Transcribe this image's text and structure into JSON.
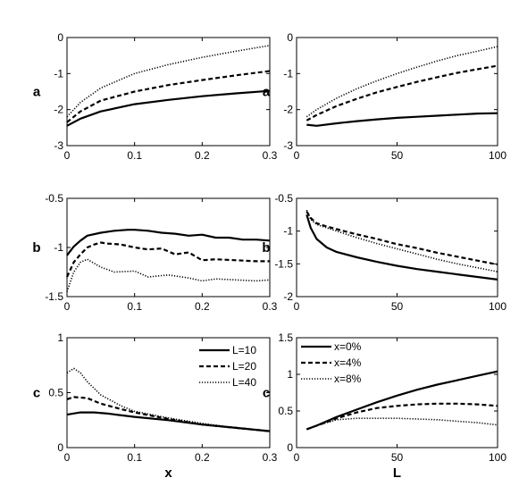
{
  "chart_data": [
    {
      "type": "line",
      "xlabel": "",
      "ylabel": "a",
      "xlim": [
        0,
        0.3
      ],
      "ylim": [
        -3,
        0
      ],
      "xticks": [
        "0",
        "0.1",
        "0.2",
        "0.3"
      ],
      "yticks": [
        "-3",
        "-2",
        "-1",
        "0"
      ],
      "series": [
        {
          "style": "solid",
          "x": [
            0,
            0.02,
            0.05,
            0.1,
            0.15,
            0.2,
            0.25,
            0.3
          ],
          "values": [
            -2.45,
            -2.25,
            -2.05,
            -1.85,
            -1.73,
            -1.63,
            -1.55,
            -1.48
          ]
        },
        {
          "style": "dashed",
          "x": [
            0,
            0.02,
            0.05,
            0.1,
            0.15,
            0.2,
            0.25,
            0.3
          ],
          "values": [
            -2.35,
            -2.05,
            -1.75,
            -1.5,
            -1.32,
            -1.18,
            -1.05,
            -0.93
          ]
        },
        {
          "style": "dotted",
          "x": [
            0,
            0.02,
            0.05,
            0.1,
            0.15,
            0.2,
            0.25,
            0.3
          ],
          "values": [
            -2.2,
            -1.8,
            -1.4,
            -1.0,
            -0.75,
            -0.55,
            -0.38,
            -0.22
          ]
        }
      ]
    },
    {
      "type": "line",
      "xlabel": "",
      "ylabel": "a",
      "xlim": [
        0,
        100
      ],
      "ylim": [
        -3,
        0
      ],
      "xticks": [
        "0",
        "50",
        "100"
      ],
      "yticks": [
        "-3",
        "-2",
        "-1",
        "0"
      ],
      "series": [
        {
          "style": "solid",
          "x": [
            5,
            10,
            20,
            30,
            40,
            50,
            60,
            70,
            80,
            90,
            100
          ],
          "values": [
            -2.42,
            -2.45,
            -2.38,
            -2.32,
            -2.27,
            -2.23,
            -2.2,
            -2.17,
            -2.14,
            -2.11,
            -2.1
          ]
        },
        {
          "style": "dashed",
          "x": [
            5,
            10,
            20,
            30,
            40,
            50,
            60,
            70,
            80,
            90,
            100
          ],
          "values": [
            -2.3,
            -2.15,
            -1.9,
            -1.7,
            -1.52,
            -1.37,
            -1.23,
            -1.1,
            -0.98,
            -0.88,
            -0.78
          ]
        },
        {
          "style": "dotted",
          "x": [
            5,
            10,
            20,
            30,
            40,
            50,
            60,
            70,
            80,
            90,
            100
          ],
          "values": [
            -2.2,
            -2.0,
            -1.68,
            -1.42,
            -1.2,
            -1.0,
            -0.82,
            -0.65,
            -0.5,
            -0.38,
            -0.25
          ]
        }
      ]
    },
    {
      "type": "line",
      "xlabel": "",
      "ylabel": "b",
      "xlim": [
        0,
        0.3
      ],
      "ylim": [
        -1.5,
        -0.5
      ],
      "xticks": [
        "0",
        "0.1",
        "0.2",
        "0.3"
      ],
      "yticks": [
        "-1.5",
        "-1",
        "-0.5"
      ],
      "series": [
        {
          "style": "solid",
          "x": [
            0,
            0.01,
            0.02,
            0.03,
            0.05,
            0.07,
            0.09,
            0.1,
            0.12,
            0.14,
            0.16,
            0.18,
            0.2,
            0.22,
            0.24,
            0.26,
            0.28,
            0.3
          ],
          "values": [
            -1.08,
            -0.99,
            -0.93,
            -0.88,
            -0.85,
            -0.83,
            -0.82,
            -0.82,
            -0.83,
            -0.85,
            -0.86,
            -0.88,
            -0.87,
            -0.9,
            -0.9,
            -0.92,
            -0.92,
            -0.93
          ]
        },
        {
          "style": "dashed",
          "x": [
            0,
            0.01,
            0.02,
            0.03,
            0.04,
            0.05,
            0.06,
            0.08,
            0.1,
            0.12,
            0.14,
            0.16,
            0.18,
            0.2,
            0.22,
            0.25,
            0.28,
            0.3
          ],
          "values": [
            -1.3,
            -1.15,
            -1.07,
            -1.0,
            -0.97,
            -0.95,
            -0.96,
            -0.97,
            -1.0,
            -1.02,
            -1.01,
            -1.07,
            -1.05,
            -1.13,
            -1.12,
            -1.13,
            -1.14,
            -1.14
          ]
        },
        {
          "style": "dotted",
          "x": [
            0,
            0.01,
            0.02,
            0.03,
            0.05,
            0.07,
            0.1,
            0.12,
            0.15,
            0.18,
            0.2,
            0.22,
            0.25,
            0.28,
            0.3
          ],
          "values": [
            -1.45,
            -1.25,
            -1.15,
            -1.12,
            -1.2,
            -1.25,
            -1.24,
            -1.3,
            -1.28,
            -1.31,
            -1.34,
            -1.32,
            -1.33,
            -1.34,
            -1.33
          ]
        }
      ]
    },
    {
      "type": "line",
      "xlabel": "",
      "ylabel": "b",
      "xlim": [
        0,
        100
      ],
      "ylim": [
        -2,
        -0.5
      ],
      "xticks": [
        "0",
        "50",
        "100"
      ],
      "yticks": [
        "-2",
        "-1.5",
        "-1",
        "-0.5"
      ],
      "series": [
        {
          "style": "solid",
          "x": [
            5,
            7,
            10,
            15,
            20,
            30,
            40,
            50,
            60,
            70,
            80,
            90,
            100
          ],
          "values": [
            -0.75,
            -0.95,
            -1.12,
            -1.25,
            -1.32,
            -1.4,
            -1.47,
            -1.53,
            -1.58,
            -1.62,
            -1.66,
            -1.7,
            -1.74
          ]
        },
        {
          "style": "dashed",
          "x": [
            5,
            7,
            10,
            15,
            20,
            30,
            40,
            50,
            60,
            70,
            80,
            90,
            100
          ],
          "values": [
            -0.7,
            -0.8,
            -0.88,
            -0.93,
            -0.97,
            -1.05,
            -1.12,
            -1.2,
            -1.26,
            -1.33,
            -1.39,
            -1.45,
            -1.51
          ]
        },
        {
          "style": "dotted",
          "x": [
            5,
            7,
            10,
            15,
            20,
            30,
            40,
            50,
            60,
            70,
            80,
            90,
            100
          ],
          "values": [
            -0.68,
            -0.82,
            -0.9,
            -0.95,
            -1.0,
            -1.1,
            -1.19,
            -1.27,
            -1.35,
            -1.43,
            -1.5,
            -1.56,
            -1.62
          ]
        }
      ]
    },
    {
      "type": "line",
      "xlabel": "x",
      "ylabel": "c",
      "xlim": [
        0,
        0.3
      ],
      "ylim": [
        0,
        1
      ],
      "xticks": [
        "0",
        "0.1",
        "0.2",
        "0.3"
      ],
      "yticks": [
        "0",
        "0.5",
        "1"
      ],
      "legend_position": "top-right",
      "series": [
        {
          "name": "L=10",
          "style": "solid",
          "x": [
            0,
            0.02,
            0.04,
            0.06,
            0.1,
            0.15,
            0.2,
            0.25,
            0.3
          ],
          "values": [
            0.3,
            0.32,
            0.32,
            0.31,
            0.28,
            0.25,
            0.21,
            0.18,
            0.15
          ]
        },
        {
          "name": "L=20",
          "style": "dashed",
          "x": [
            0,
            0.01,
            0.03,
            0.05,
            0.08,
            0.1,
            0.15,
            0.2,
            0.25,
            0.3
          ],
          "values": [
            0.44,
            0.46,
            0.45,
            0.4,
            0.35,
            0.32,
            0.26,
            0.21,
            0.18,
            0.15
          ]
        },
        {
          "name": "L=40",
          "style": "dotted",
          "x": [
            0,
            0.01,
            0.02,
            0.03,
            0.05,
            0.08,
            0.1,
            0.15,
            0.2,
            0.25,
            0.3
          ],
          "values": [
            0.68,
            0.72,
            0.68,
            0.6,
            0.48,
            0.38,
            0.33,
            0.27,
            0.22,
            0.18,
            0.15
          ]
        }
      ]
    },
    {
      "type": "line",
      "xlabel": "L",
      "ylabel": "c",
      "xlim": [
        0,
        100
      ],
      "ylim": [
        0,
        1.5
      ],
      "xticks": [
        "0",
        "50",
        "100"
      ],
      "yticks": [
        "0",
        "0.5",
        "1",
        "1.5"
      ],
      "legend_position": "top-left",
      "series": [
        {
          "name": "x=0%",
          "style": "solid",
          "x": [
            5,
            10,
            20,
            30,
            40,
            50,
            60,
            70,
            80,
            90,
            100
          ],
          "values": [
            0.25,
            0.3,
            0.42,
            0.52,
            0.62,
            0.71,
            0.79,
            0.86,
            0.92,
            0.98,
            1.04
          ]
        },
        {
          "name": "x=4%",
          "style": "dashed",
          "x": [
            5,
            10,
            20,
            30,
            40,
            50,
            60,
            70,
            80,
            90,
            100
          ],
          "values": [
            0.25,
            0.3,
            0.4,
            0.48,
            0.54,
            0.57,
            0.59,
            0.6,
            0.6,
            0.59,
            0.57
          ]
        },
        {
          "name": "x=8%",
          "style": "dotted",
          "x": [
            5,
            10,
            20,
            30,
            40,
            50,
            60,
            70,
            80,
            90,
            100
          ],
          "values": [
            0.25,
            0.3,
            0.38,
            0.4,
            0.4,
            0.4,
            0.39,
            0.38,
            0.36,
            0.34,
            0.31
          ]
        }
      ]
    }
  ]
}
